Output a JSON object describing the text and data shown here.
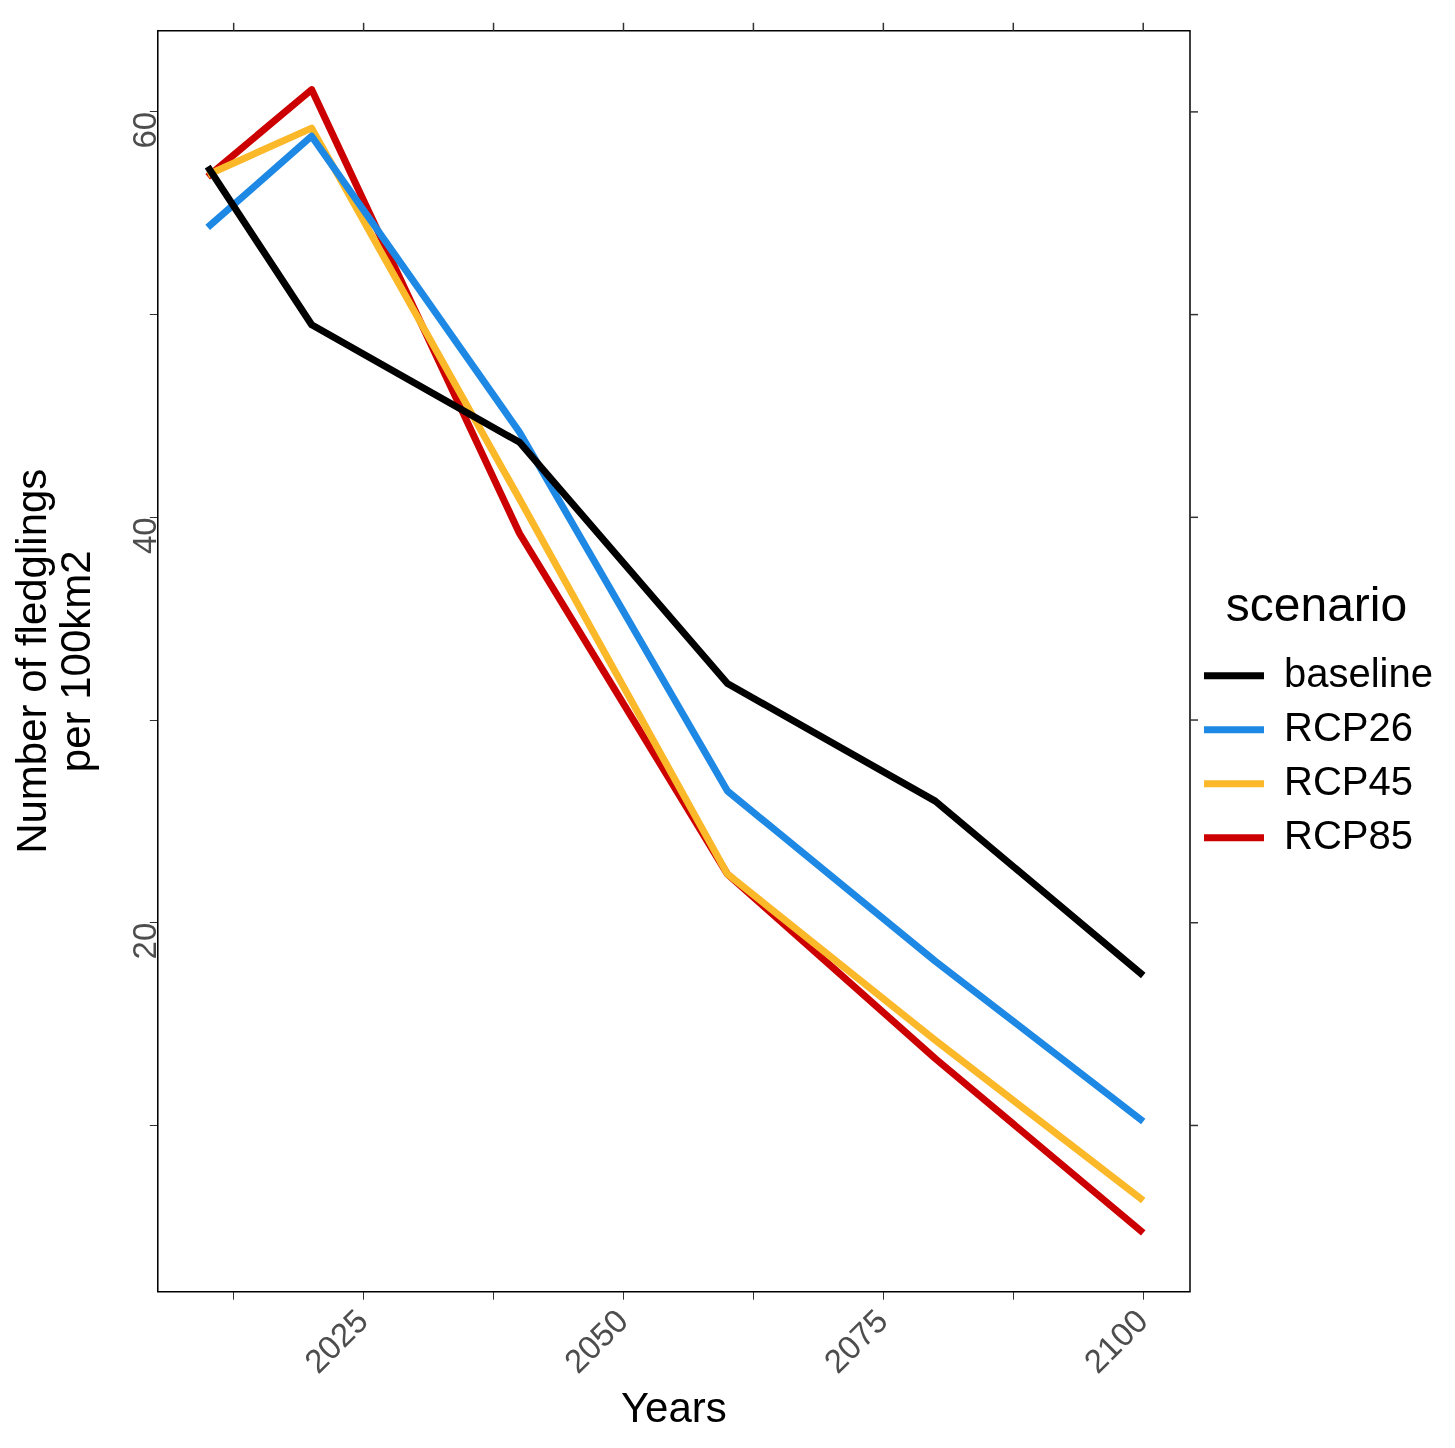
{
  "chart_data": {
    "type": "line",
    "xlabel": "Years",
    "ylabel": "Number of fledglings\nper 100km2",
    "legend_title": "scenario",
    "legend": "right",
    "grid": false,
    "marker": "none",
    "line_style": "solid",
    "xlim": [
      2005.2,
      2104.5
    ],
    "xticks": [
      {
        "value": 2012.5,
        "label": null
      },
      2025,
      {
        "value": 2037.5,
        "label": null
      },
      2050,
      {
        "value": 2062.5,
        "label": null
      },
      2075,
      {
        "value": 2087.5,
        "label": null
      },
      2100
    ],
    "ylim": [
      1.8,
      64
    ],
    "yticks": [
      {
        "value": 10,
        "label": null
      },
      20,
      {
        "value": 30,
        "label": null
      },
      40,
      {
        "value": 50,
        "label": null
      },
      60
    ],
    "x": [
      2010,
      2020,
      2040,
      2060,
      2080,
      2100
    ],
    "series": [
      {
        "name": "baseline",
        "color": "#000000",
        "values": [
          57.3,
          49.5,
          43.7,
          31.8,
          26.0,
          17.4
        ]
      },
      {
        "name": "RCP26",
        "color": "#1e88e5",
        "values": [
          54.3,
          58.8,
          44.2,
          26.5,
          18.1,
          10.2
        ]
      },
      {
        "name": "RCP45",
        "color": "#fbb829",
        "values": [
          56.9,
          59.2,
          40.9,
          22.4,
          14.2,
          6.3
        ]
      },
      {
        "name": "RCP85",
        "color": "#cc0000",
        "values": [
          56.8,
          61.1,
          39.2,
          22.4,
          13.3,
          4.7
        ]
      }
    ]
  }
}
